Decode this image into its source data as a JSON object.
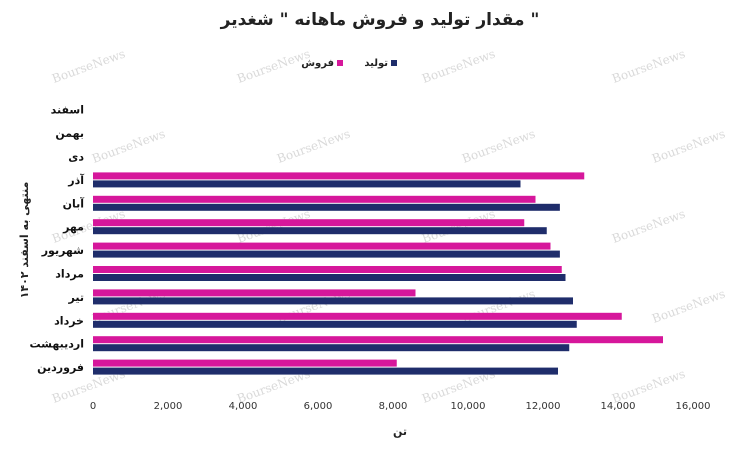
{
  "chart_data": {
    "type": "bar",
    "orientation": "horizontal",
    "title": "مقدار تولید و فروش ماهانه \" شغدیر \"",
    "xlabel": "تن",
    "ylabel": "منتهی به اسفند ۱۴۰۲",
    "xlim": [
      0,
      16000
    ],
    "xticks": [
      0,
      2000,
      4000,
      6000,
      8000,
      10000,
      12000,
      14000,
      16000
    ],
    "xtick_labels": [
      "0",
      "2,000",
      "4,000",
      "6,000",
      "8,000",
      "10,000",
      "12,000",
      "14,000",
      "16,000"
    ],
    "grid": false,
    "legend_position": "top",
    "categories": [
      "فروردین",
      "اردیبهشت",
      "خرداد",
      "تیر",
      "مرداد",
      "شهریور",
      "مهر",
      "آبان",
      "آذر",
      "دی",
      "بهمن",
      "اسفند"
    ],
    "series": [
      {
        "name": "فروش",
        "color": "#d6179b",
        "values": [
          8100,
          15200,
          14100,
          8600,
          12500,
          12200,
          11500,
          11800,
          13100,
          null,
          null,
          null
        ]
      },
      {
        "name": "تولید",
        "color": "#1f2d6b",
        "values": [
          12400,
          12700,
          12900,
          12800,
          12600,
          12450,
          12100,
          12450,
          11400,
          null,
          null,
          null
        ]
      }
    ]
  },
  "watermark_text": "BourseNews"
}
